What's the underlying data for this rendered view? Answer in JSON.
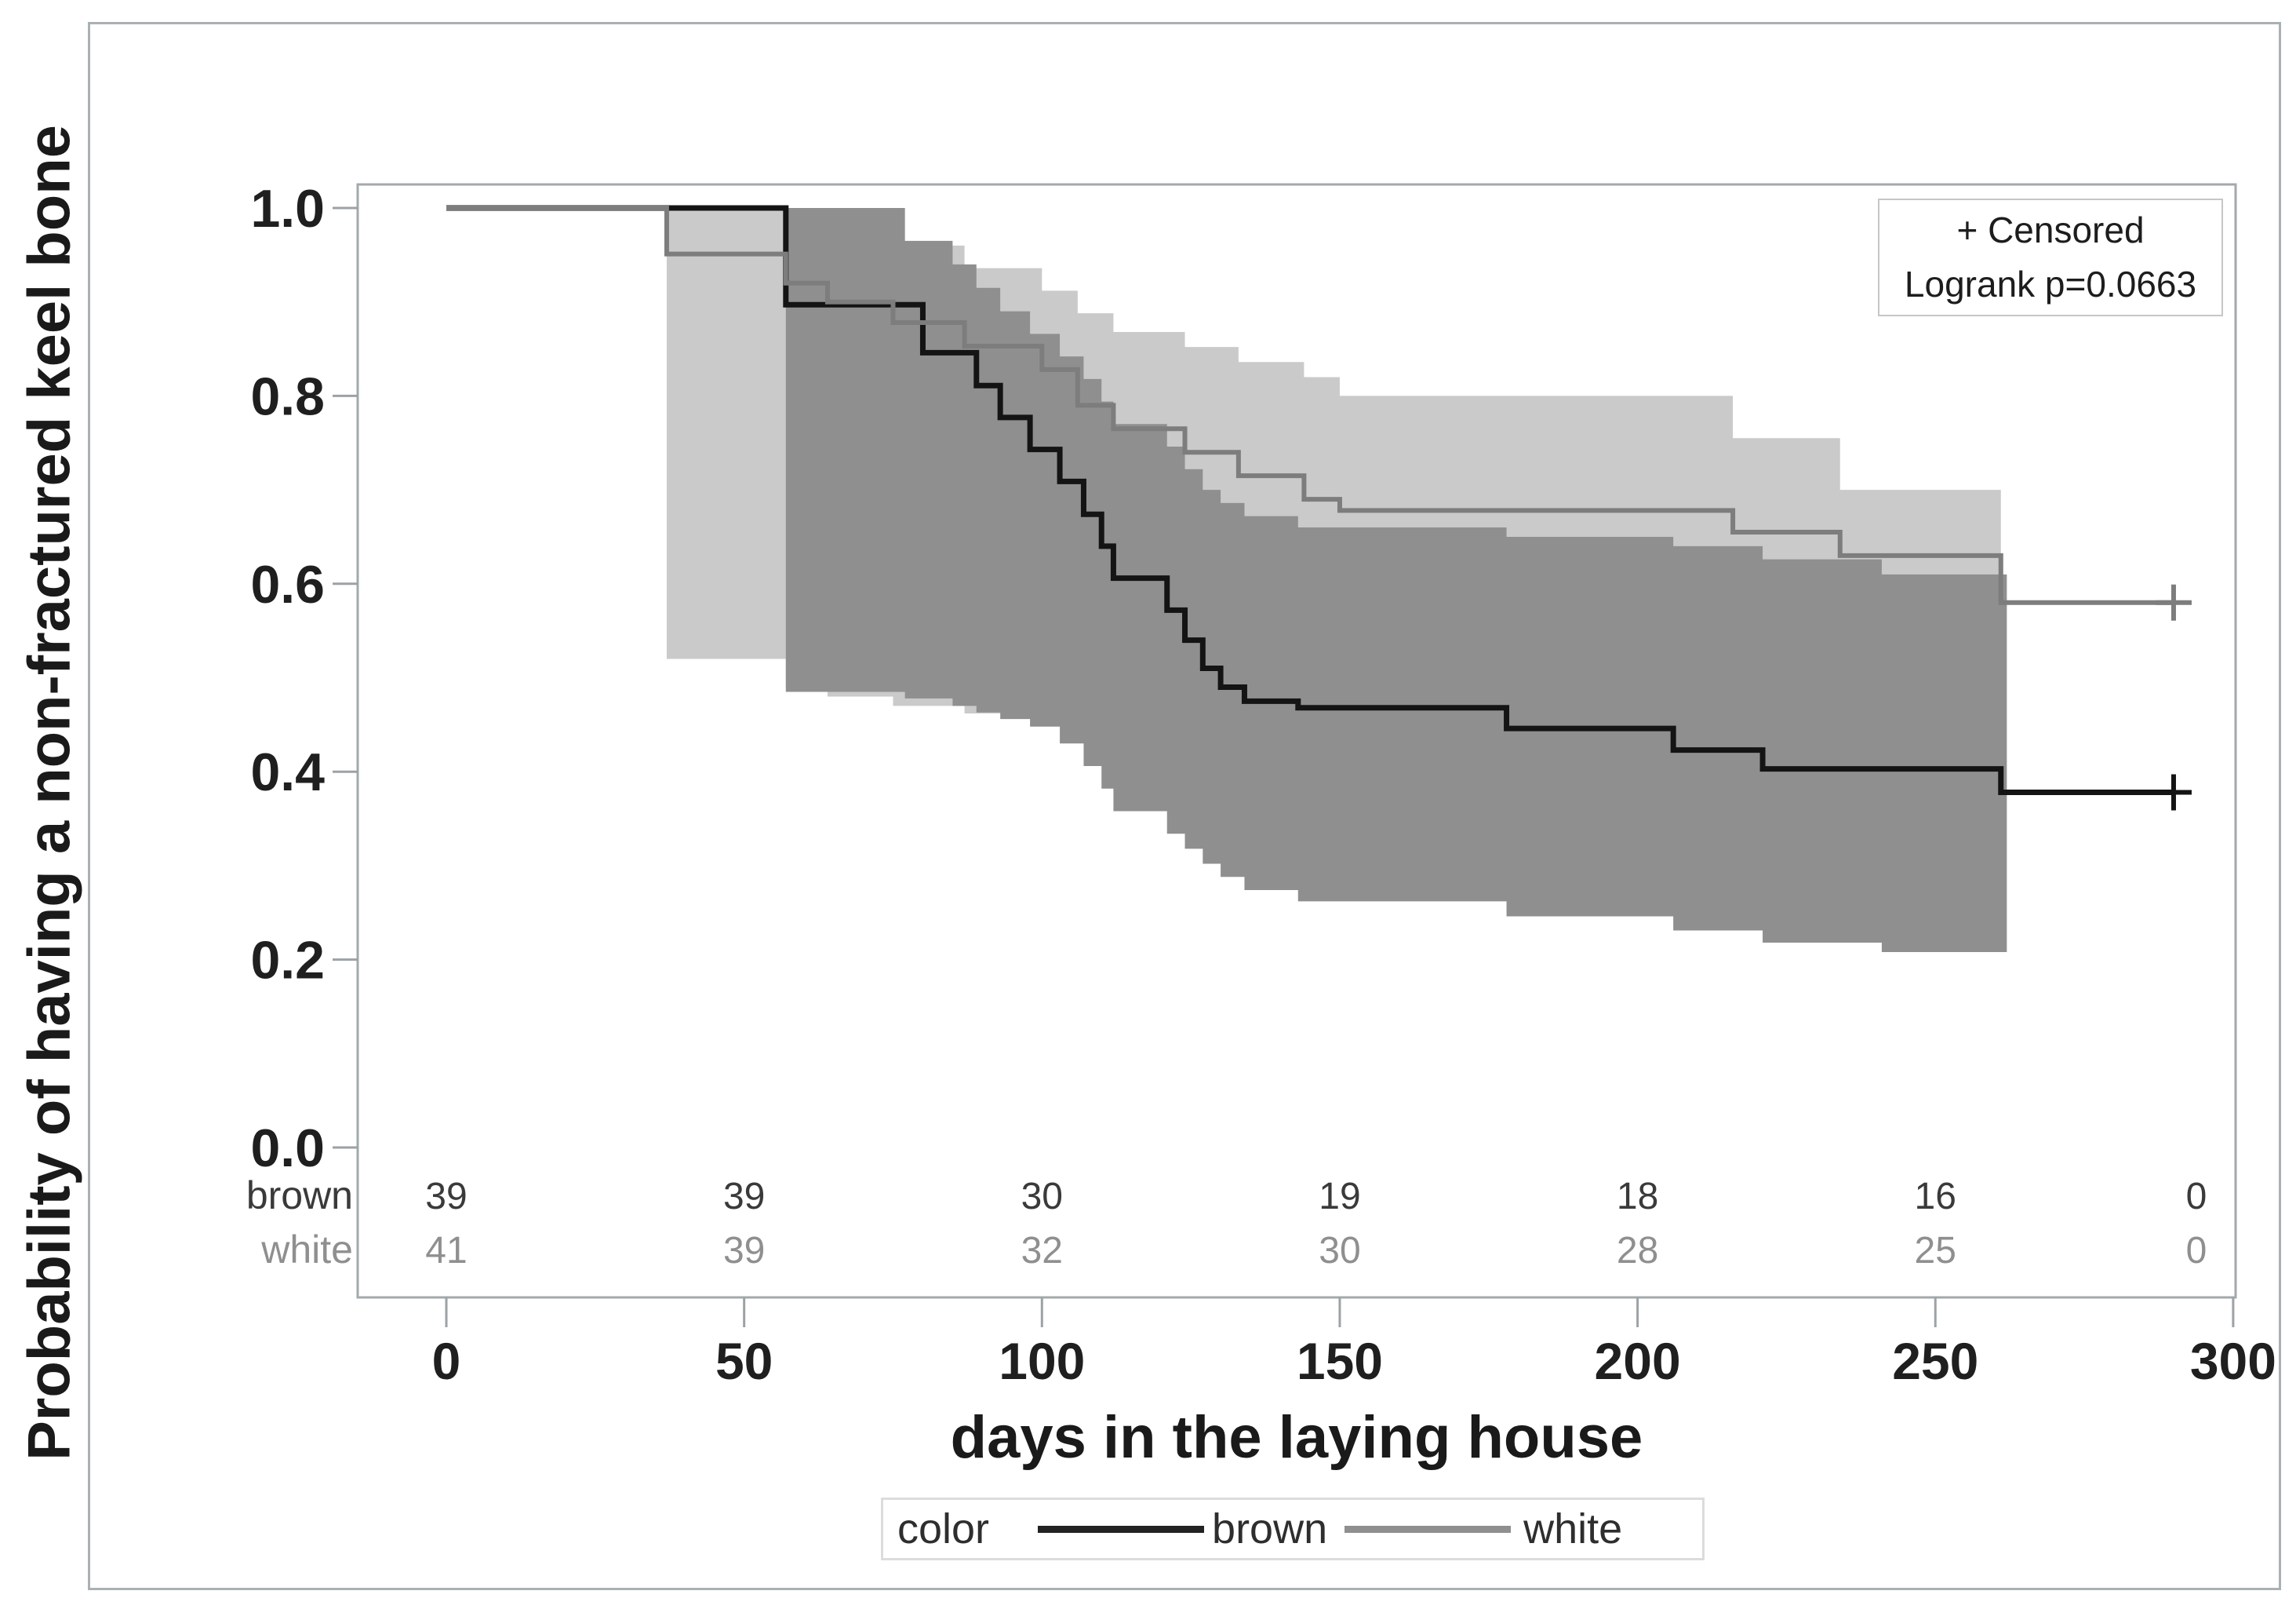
{
  "figure": {
    "y_axis_title": "Probability of having a non-fractured keel bone",
    "x_axis_title": "days in the laying house"
  },
  "censored_box": {
    "line1": "+ Censored",
    "line2": "Logrank p=0.0663"
  },
  "legend": {
    "title": "color",
    "series": [
      {
        "label": "brown",
        "color": "#222222"
      },
      {
        "label": "white",
        "color": "#8f8f8f"
      }
    ]
  },
  "colors": {
    "light_band": "#cacaca",
    "dark_band": "#8f8f8f",
    "brown_line": "#141414",
    "white_line": "#7d7d7d",
    "axis_border": "#a3a9ab",
    "tick": "#9da2a4",
    "tick_label": "#1f1f1f",
    "at_risk_brown": "#3a3a3a",
    "at_risk_white": "#8f8f8f"
  },
  "chart_data": {
    "type": "line",
    "subtype": "kaplan-meier-step",
    "title": "",
    "xlabel": "days in the laying house",
    "ylabel": "Probability of having a non-fractured keel bone",
    "xlim": [
      0,
      300
    ],
    "ylim": [
      0.0,
      1.0
    ],
    "x_ticks": [
      0,
      50,
      100,
      150,
      200,
      250,
      300
    ],
    "x_tick_labels": [
      "0",
      "50",
      "100",
      "150",
      "200",
      "250",
      "300"
    ],
    "y_ticks": [
      1.0,
      0.8,
      0.6,
      0.4,
      0.2,
      0.0
    ],
    "y_tick_labels": [
      "1.0",
      "0.8",
      "0.6",
      "0.4",
      "0.2",
      "0.0"
    ],
    "grid": false,
    "legend_position": "bottom",
    "annotations": [
      "+ Censored",
      "Logrank p=0.0663"
    ],
    "series": [
      {
        "name": "brown",
        "color": "#141414",
        "line_width": 7,
        "steps": [
          [
            0,
            1.0
          ],
          [
            57,
            0.897
          ],
          [
            80,
            0.846
          ],
          [
            89,
            0.811
          ],
          [
            93,
            0.777
          ],
          [
            98,
            0.743
          ],
          [
            103,
            0.709
          ],
          [
            107,
            0.674
          ],
          [
            110,
            0.64
          ],
          [
            112,
            0.606
          ],
          [
            121,
            0.572
          ],
          [
            124,
            0.54
          ],
          [
            127,
            0.51
          ],
          [
            130,
            0.49
          ],
          [
            134,
            0.475
          ],
          [
            143,
            0.468
          ],
          [
            178,
            0.446
          ],
          [
            206,
            0.423
          ],
          [
            221,
            0.403
          ],
          [
            261,
            0.378
          ]
        ],
        "end_day": 290,
        "censored_at_end": true,
        "ci_band": {
          "color": "#8f8f8f",
          "end_day": 262,
          "steps": [
            [
              57,
              0.485,
              1.0
            ],
            [
              77,
              0.478,
              0.965
            ],
            [
              85,
              0.47,
              0.94
            ],
            [
              89,
              0.463,
              0.915
            ],
            [
              93,
              0.456,
              0.89
            ],
            [
              98,
              0.448,
              0.866
            ],
            [
              103,
              0.43,
              0.842
            ],
            [
              107,
              0.406,
              0.818
            ],
            [
              110,
              0.382,
              0.794
            ],
            [
              112,
              0.358,
              0.77
            ],
            [
              121,
              0.334,
              0.746
            ],
            [
              124,
              0.318,
              0.722
            ],
            [
              127,
              0.302,
              0.7
            ],
            [
              130,
              0.288,
              0.686
            ],
            [
              134,
              0.274,
              0.672
            ],
            [
              143,
              0.262,
              0.66
            ],
            [
              178,
              0.246,
              0.65
            ],
            [
              206,
              0.231,
              0.64
            ],
            [
              221,
              0.218,
              0.626
            ],
            [
              241,
              0.208,
              0.61
            ]
          ]
        }
      },
      {
        "name": "white",
        "color": "#7d7d7d",
        "line_width": 6,
        "steps": [
          [
            0,
            1.0
          ],
          [
            37,
            0.951
          ],
          [
            57,
            0.92
          ],
          [
            64,
            0.9
          ],
          [
            75,
            0.878
          ],
          [
            87,
            0.853
          ],
          [
            100,
            0.828
          ],
          [
            106,
            0.79
          ],
          [
            112,
            0.765
          ],
          [
            124,
            0.74
          ],
          [
            133,
            0.715
          ],
          [
            144,
            0.69
          ],
          [
            150,
            0.678
          ],
          [
            216,
            0.655
          ],
          [
            234,
            0.63
          ],
          [
            261,
            0.58
          ]
        ],
        "end_day": 290,
        "censored_at_end": true,
        "ci_band": {
          "color": "#cacaca",
          "end_day": 261,
          "steps": [
            [
              37,
              0.52,
              1.0
            ],
            [
              57,
              0.49,
              1.0
            ],
            [
              64,
              0.48,
              0.985
            ],
            [
              75,
              0.47,
              0.96
            ],
            [
              87,
              0.462,
              0.936
            ],
            [
              100,
              0.455,
              0.912
            ],
            [
              106,
              0.44,
              0.888
            ],
            [
              112,
              0.42,
              0.868
            ],
            [
              124,
              0.4,
              0.852
            ],
            [
              133,
              0.39,
              0.836
            ],
            [
              144,
              0.38,
              0.82
            ],
            [
              150,
              0.373,
              0.8
            ],
            [
              216,
              0.366,
              0.755
            ],
            [
              234,
              0.36,
              0.7
            ]
          ]
        }
      }
    ],
    "at_risk_table": {
      "days": [
        0,
        50,
        100,
        150,
        200,
        250,
        300
      ],
      "rows": [
        {
          "label": "brown",
          "color": "#3a3a3a",
          "values": [
            "39",
            "39",
            "30",
            "19",
            "18",
            "16",
            "0"
          ]
        },
        {
          "label": "white",
          "color": "#8f8f8f",
          "values": [
            "41",
            "39",
            "32",
            "30",
            "28",
            "25",
            "0"
          ]
        }
      ]
    }
  }
}
